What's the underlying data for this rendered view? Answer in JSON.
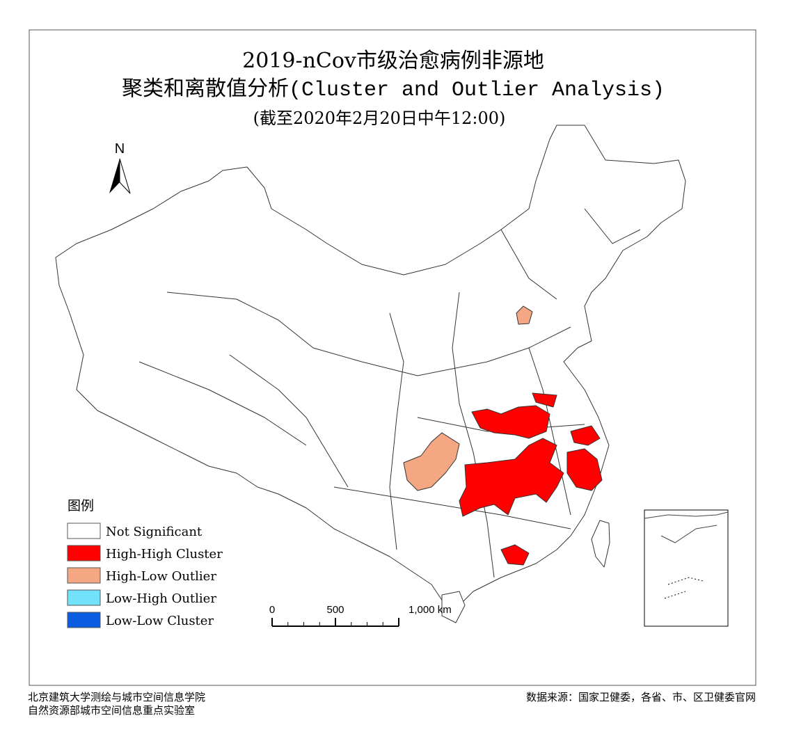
{
  "title": {
    "line1": "2019-nCov市级治愈病例非源地",
    "line2": "聚类和离散值分析(Cluster and Outlier Analysis)",
    "line3": "(截至2020年2月20日中午12:00)"
  },
  "north_label": "N",
  "legend": {
    "title": "图例",
    "items": [
      {
        "label": "Not Significant",
        "color": "#ffffff"
      },
      {
        "label": "High-High Cluster",
        "color": "#ff0000"
      },
      {
        "label": "High-Low Outlier",
        "color": "#f5a682"
      },
      {
        "label": "Low-High Outlier",
        "color": "#72e1fa"
      },
      {
        "label": "Low-Low Cluster",
        "color": "#0a5de0"
      }
    ]
  },
  "scale_bar": {
    "labels": [
      "0",
      "500",
      "1,000 km"
    ]
  },
  "footer": {
    "left": [
      "北京建筑大学测绘与城市空间信息学院",
      "自然资源部城市空间信息重点实验室"
    ],
    "right": "数据来源：国家卫健委，各省、市、区卫健委官网"
  }
}
